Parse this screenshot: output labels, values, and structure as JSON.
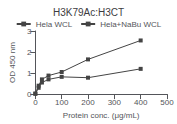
{
  "chart_data": {
    "type": "line",
    "title": "H3K79Ac:H3CT",
    "xlabel": "Protein conc. (μg/mL)",
    "ylabel": "OD 450 nm",
    "xlim": [
      0,
      500
    ],
    "ylim": [
      0,
      3
    ],
    "xticks": [
      0,
      100,
      200,
      300,
      400,
      500
    ],
    "yticks": [
      0,
      1,
      2,
      3
    ],
    "grid": false,
    "legend": "top",
    "series": [
      {
        "name": "Hela WCL",
        "color": "#444444",
        "marker": "square",
        "line_style": "solid",
        "x": [
          0,
          12.5,
          25,
          50,
          100,
          200,
          400
        ],
        "values": [
          0.02,
          0.3,
          0.55,
          0.7,
          0.82,
          0.78,
          1.2
        ]
      },
      {
        "name": "Hela+NaBu WCL",
        "color": "#444444",
        "marker": "square",
        "line_style": "solid",
        "x": [
          0,
          12.5,
          25,
          50,
          100,
          200,
          400
        ],
        "values": [
          0.02,
          0.4,
          0.7,
          0.88,
          1.05,
          1.65,
          2.55
        ]
      }
    ]
  }
}
